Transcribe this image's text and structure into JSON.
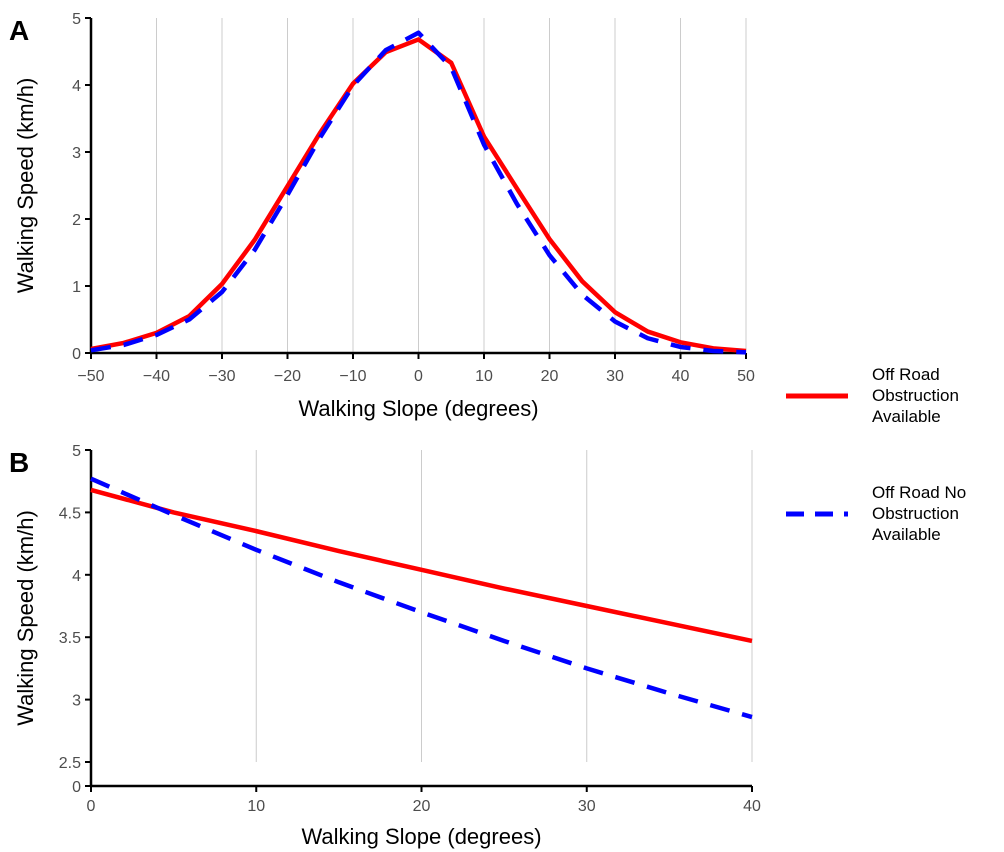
{
  "legend": {
    "entries": [
      {
        "lines": [
          "Off Road",
          "Obstruction",
          "Available"
        ],
        "color": "#ff0000",
        "style": "solid"
      },
      {
        "lines": [
          "Off Road No",
          "Obstruction",
          "Available"
        ],
        "color": "#0000ff",
        "style": "dashed"
      }
    ],
    "placement": "right"
  },
  "chart_data": [
    {
      "panel": "A",
      "type": "line",
      "xlabel": "Walking Slope (degrees)",
      "ylabel": "Walking Speed (km/h)",
      "xlim": [
        -50,
        50
      ],
      "ylim": [
        0,
        5
      ],
      "xticks": [
        -50,
        -40,
        -30,
        -20,
        -10,
        0,
        10,
        20,
        30,
        40,
        50
      ],
      "yticks": [
        0,
        1,
        2,
        3,
        4,
        5
      ],
      "grid": "vertical",
      "x": [
        -50,
        -45,
        -40,
        -35,
        -30,
        -25,
        -20,
        -15,
        -10,
        -5,
        0,
        5,
        10,
        15,
        20,
        25,
        30,
        35,
        40,
        45,
        50
      ],
      "series": [
        {
          "name": "Off Road Obstruction Available",
          "values": [
            0.06,
            0.15,
            0.3,
            0.55,
            1.03,
            1.69,
            2.49,
            3.29,
            4.02,
            4.49,
            4.68,
            4.33,
            3.23,
            2.46,
            1.7,
            1.07,
            0.61,
            0.32,
            0.16,
            0.07,
            0.03
          ]
        },
        {
          "name": "Off Road No Obstruction Available",
          "values": [
            0.04,
            0.12,
            0.27,
            0.5,
            0.91,
            1.54,
            2.36,
            3.22,
            3.99,
            4.52,
            4.78,
            4.26,
            3.11,
            2.23,
            1.46,
            0.87,
            0.47,
            0.22,
            0.09,
            0.03,
            0.01
          ]
        }
      ]
    },
    {
      "panel": "B",
      "type": "line",
      "xlabel": "Walking Slope (degrees)",
      "ylabel": "Walking Speed (km/h)",
      "xlim": [
        0,
        40
      ],
      "ylim": [
        2.5,
        5
      ],
      "xticks": [
        0,
        10,
        20,
        30,
        40
      ],
      "yticks": [
        0,
        2.5,
        3,
        3.5,
        4,
        4.5,
        5
      ],
      "axis_break": "between 0 and 2.5",
      "grid": "vertical",
      "x": [
        0,
        5,
        10,
        15,
        20,
        25,
        30,
        35,
        40
      ],
      "series": [
        {
          "name": "Off Road Obstruction Available",
          "values": [
            4.68,
            4.5,
            4.35,
            4.19,
            4.04,
            3.89,
            3.75,
            3.61,
            3.47
          ]
        },
        {
          "name": "Off Road No Obstruction Available",
          "values": [
            4.77,
            4.48,
            4.2,
            3.94,
            3.7,
            3.47,
            3.25,
            3.05,
            2.86
          ]
        }
      ]
    }
  ]
}
